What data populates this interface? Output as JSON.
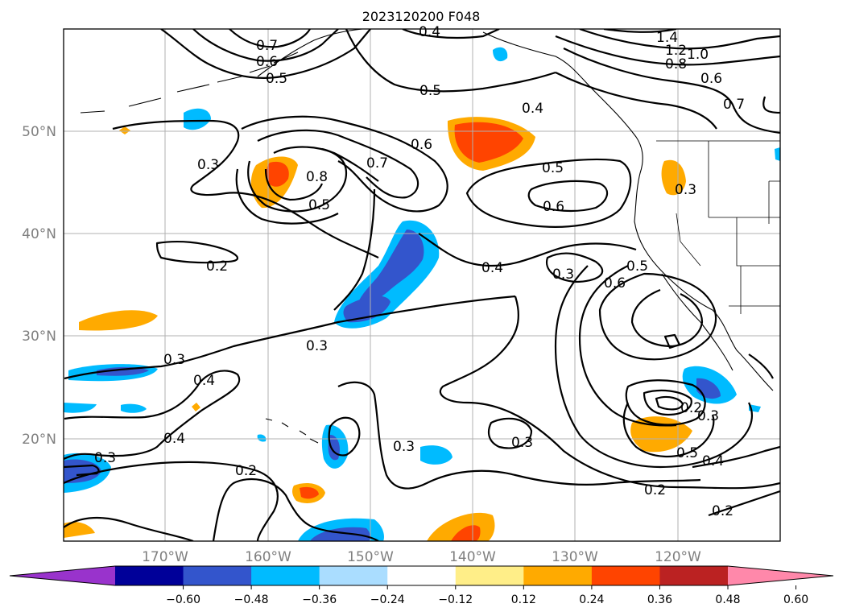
{
  "title": "2023120200 F048",
  "lat_labels": [
    "50°N",
    "40°N",
    "30°N",
    "20°N"
  ],
  "lon_labels": [
    "170°W",
    "160°W",
    "150°W",
    "140°W",
    "130°W",
    "120°W"
  ],
  "colorbar": {
    "ticks": [
      "−0.60",
      "−0.48",
      "−0.36",
      "−0.24",
      "−0.12",
      "0.12",
      "0.24",
      "0.36",
      "0.48",
      "0.60"
    ],
    "colors": [
      "#9933cc",
      "#000099",
      "#3355cc",
      "#00bbff",
      "#aaddff",
      "#ffffff",
      "#ffee88",
      "#ffaa00",
      "#ff4400",
      "#bb2222",
      "#ff88aa"
    ]
  },
  "contour_labels": [
    {
      "text": "0.7"
    },
    {
      "text": "0.6"
    },
    {
      "text": "0.5"
    },
    {
      "text": "0.4"
    },
    {
      "text": "1.4"
    },
    {
      "text": "1.2"
    },
    {
      "text": "1.0"
    },
    {
      "text": "0.8"
    },
    {
      "text": "0.6"
    },
    {
      "text": "0.7"
    },
    {
      "text": "0.5"
    },
    {
      "text": "0.4"
    },
    {
      "text": "0.6"
    },
    {
      "text": "0.3"
    },
    {
      "text": "0.8"
    },
    {
      "text": "0.7"
    },
    {
      "text": "0.5"
    },
    {
      "text": "0.5"
    },
    {
      "text": "0.6"
    },
    {
      "text": "0.3"
    },
    {
      "text": "0.2"
    },
    {
      "text": "0.4"
    },
    {
      "text": "0.3"
    },
    {
      "text": "0.5"
    },
    {
      "text": "0.6"
    },
    {
      "text": "0.3"
    },
    {
      "text": "0.3"
    },
    {
      "text": "0.4"
    },
    {
      "text": "0.4"
    },
    {
      "text": "0.3"
    },
    {
      "text": "0.3"
    },
    {
      "text": "0.2"
    },
    {
      "text": "0.3"
    },
    {
      "text": "0.2"
    },
    {
      "text": "0.5"
    },
    {
      "text": "0.4"
    },
    {
      "text": "0.2"
    },
    {
      "text": "0.2"
    },
    {
      "text": "0.3"
    }
  ]
}
